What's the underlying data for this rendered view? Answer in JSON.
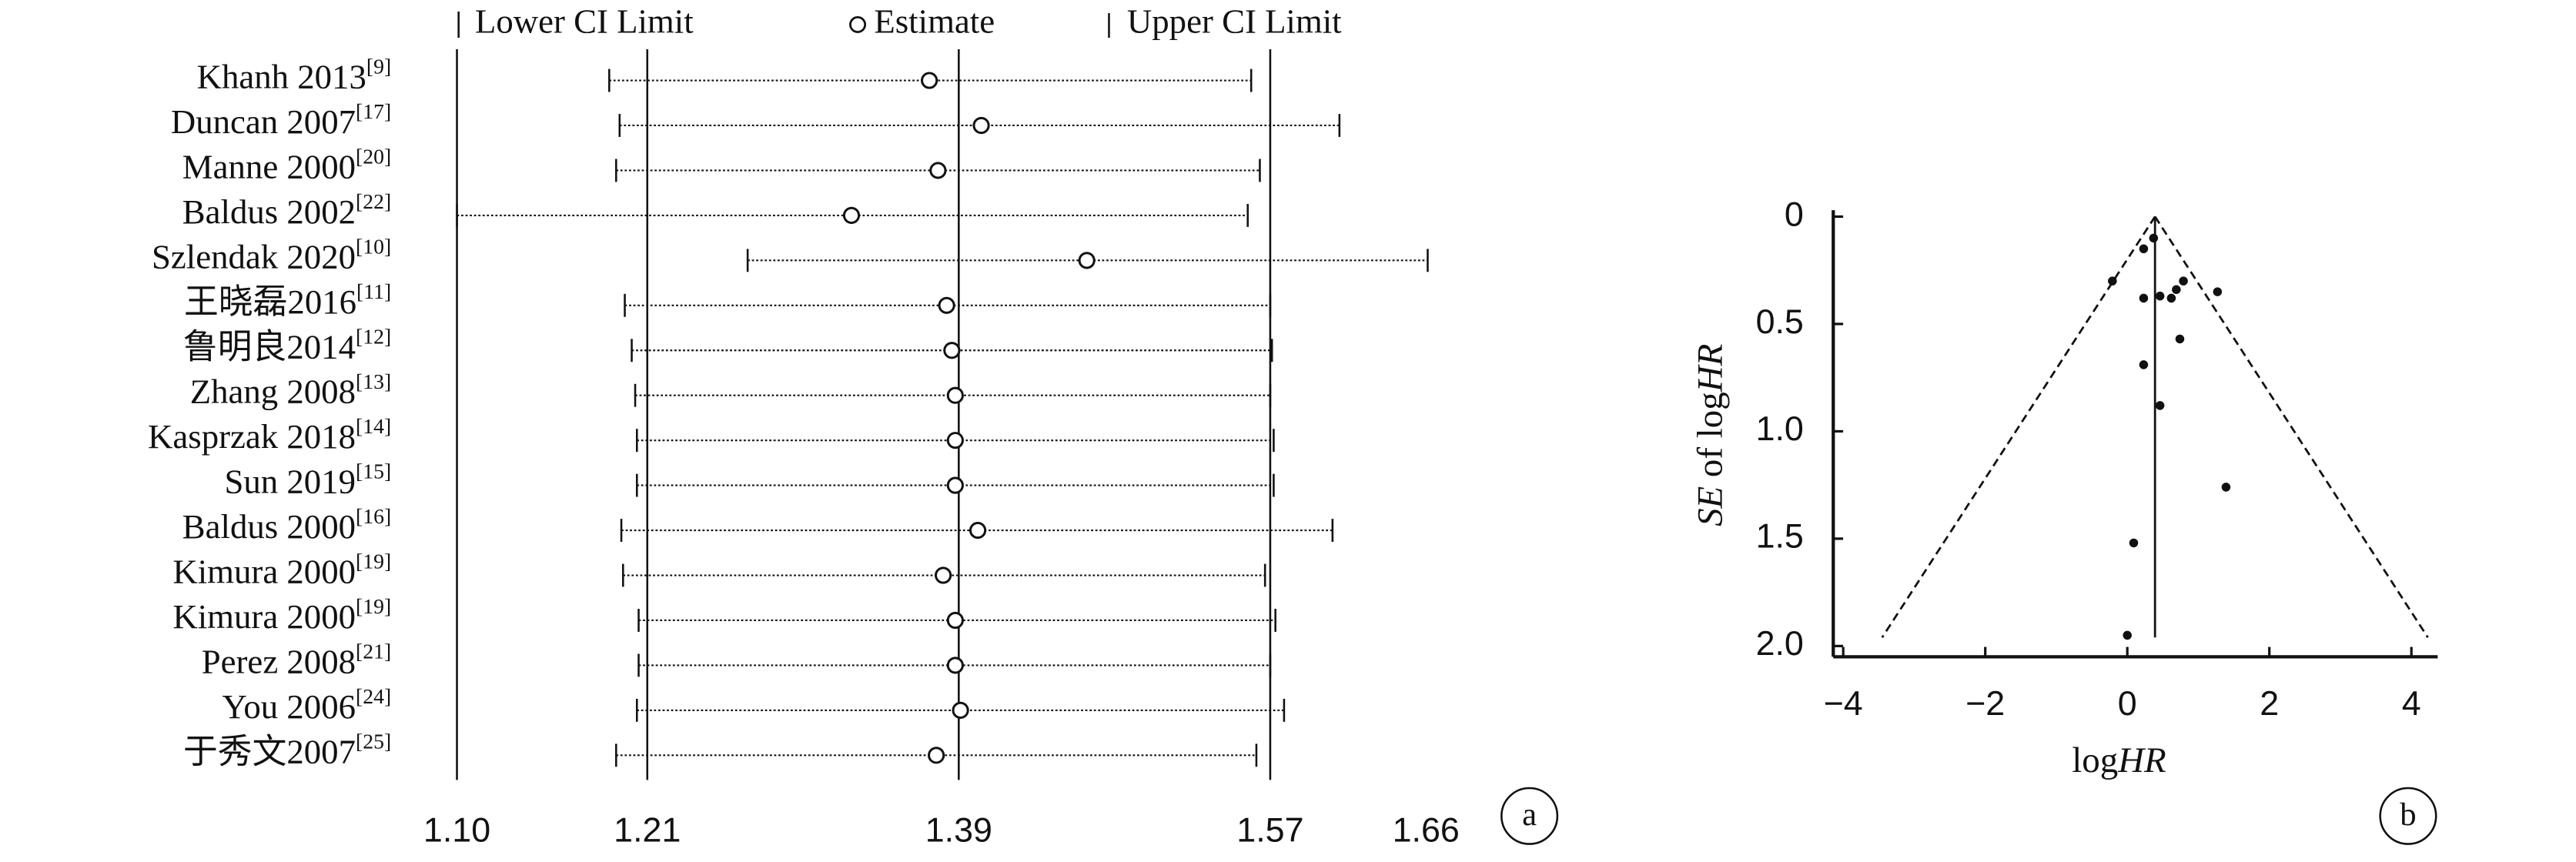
{
  "chart_data": [
    {
      "type": "forest",
      "panel_label": "a",
      "legend": {
        "lower": "Lower CI Limit",
        "estimate": "Estimate",
        "upper": "Upper CI Limit"
      },
      "categories": [
        "Khanh 2013",
        "Duncan 2007",
        "Manne 2000",
        "Baldus 2002",
        "Szlendak 2020",
        "王晓磊2016",
        "鲁明良2014",
        "Zhang 2008",
        "Kasprzak 2018",
        "Sun 2019",
        "Baldus 2000",
        "Kimura 2000",
        "Kimura 2000",
        "Perez 2008",
        "You 2006",
        "于秀文2007"
      ],
      "refs": [
        "[9]",
        "[17]",
        "[20]",
        "[22]",
        "[10]",
        "[11]",
        "[12]",
        "[13]",
        "[14]",
        "[15]",
        "[16]",
        "[19]",
        "[19]",
        "[21]",
        "[24]",
        "[25]"
      ],
      "lower": [
        1.188,
        1.194,
        1.192,
        1.1,
        1.268,
        1.197,
        1.201,
        1.203,
        1.204,
        1.204,
        1.195,
        1.196,
        1.205,
        1.205,
        1.204,
        1.192
      ],
      "values": [
        1.373,
        1.403,
        1.378,
        1.328,
        1.464,
        1.383,
        1.386,
        1.388,
        1.388,
        1.388,
        1.401,
        1.381,
        1.388,
        1.388,
        1.391,
        1.377
      ],
      "upper": [
        1.559,
        1.61,
        1.564,
        1.557,
        1.661,
        1.57,
        1.571,
        1.57,
        1.572,
        1.572,
        1.606,
        1.567,
        1.573,
        1.57,
        1.578,
        1.562
      ],
      "xlim": [
        1.1,
        1.66
      ],
      "xticks": [
        {
          "value": 1.1,
          "label": "1.10"
        },
        {
          "value": 1.21,
          "label": "1.21"
        },
        {
          "value": 1.39,
          "label": "1.39"
        },
        {
          "value": 1.57,
          "label": "1.57"
        },
        {
          "value": 1.66,
          "label": "1.66"
        }
      ],
      "grid": true
    },
    {
      "type": "funnel",
      "panel_label": "b",
      "xlabel_parts": [
        {
          "text": "log",
          "italic": false
        },
        {
          "text": "HR",
          "italic": true
        }
      ],
      "ylabel_parts": [
        {
          "text": "SE",
          "italic": true
        },
        {
          "text": " of log",
          "italic": false
        },
        {
          "text": "HR",
          "italic": true
        }
      ],
      "x": [
        0.37,
        0.23,
        -0.21,
        0.23,
        0.46,
        0.62,
        0.69,
        0.79,
        1.27,
        0.74,
        0.23,
        0.46,
        1.39,
        0.09,
        0.0
      ],
      "values": [
        0.1,
        0.15,
        0.3,
        0.38,
        0.37,
        0.38,
        0.34,
        0.3,
        0.35,
        0.57,
        0.69,
        0.88,
        1.26,
        1.52,
        1.95
      ],
      "funnel": {
        "center": 0.39,
        "z": 1.96,
        "se_max": 1.96
      },
      "xlim": [
        -4.14,
        4.37
      ],
      "ylim": [
        -0.03,
        2.05
      ],
      "y_inverted": true,
      "xticks": [
        {
          "value": -4,
          "label": "−4"
        },
        {
          "value": -2,
          "label": "−2"
        },
        0,
        2,
        4
      ],
      "yticks": [
        0,
        0.5,
        {
          "value": 1.0,
          "label": "1.0"
        },
        1.5,
        {
          "value": 2.0,
          "label": "2.0"
        }
      ]
    }
  ]
}
